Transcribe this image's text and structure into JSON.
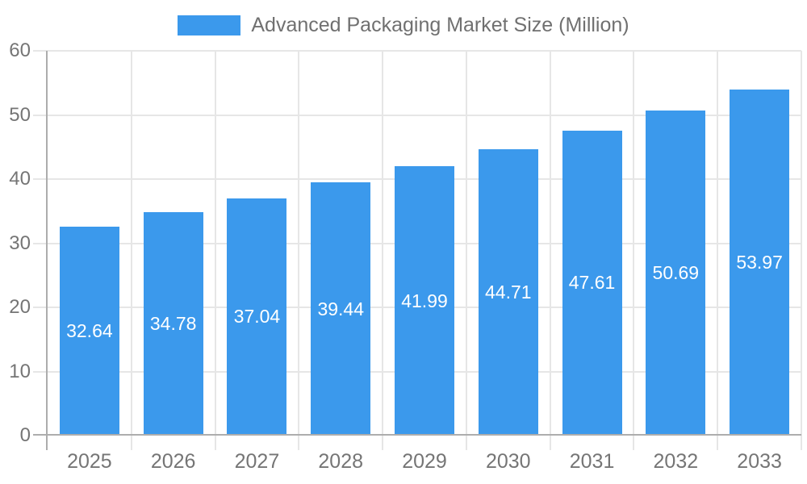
{
  "chart_data": {
    "type": "bar",
    "title": "Advanced Packaging Market Size (Million)",
    "legend": [
      "Advanced Packaging Market Size (Million)"
    ],
    "legend_position": "top-center",
    "categories": [
      "2025",
      "2026",
      "2027",
      "2028",
      "2029",
      "2030",
      "2031",
      "2032",
      "2033"
    ],
    "values": [
      32.64,
      34.78,
      37.04,
      39.44,
      41.99,
      44.71,
      47.61,
      50.69,
      53.97
    ],
    "data_labels": [
      "32.64",
      "34.78",
      "37.04",
      "39.44",
      "41.99",
      "44.71",
      "47.61",
      "50.69",
      "53.97"
    ],
    "xlabel": "",
    "ylabel": "",
    "ylim": [
      0,
      60
    ],
    "ytick_step": 10,
    "yticks": [
      0,
      10,
      20,
      30,
      40,
      50,
      60
    ],
    "grid": true,
    "colors": {
      "bar": "#3b99ec",
      "bar_label": "#ffffff",
      "grid_line": "#e6e6e6",
      "axis_line": "#adadad",
      "tick_text": "#757575",
      "legend_text": "#707070",
      "background": "#ffffff"
    }
  }
}
